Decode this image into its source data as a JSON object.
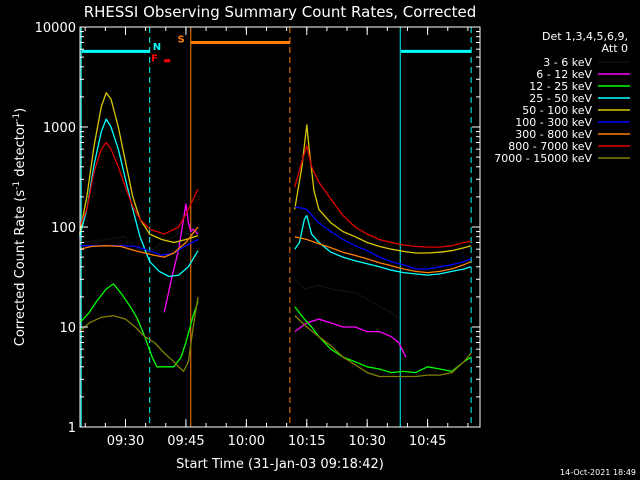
{
  "chart_data": {
    "type": "line",
    "title": "RHESSI Observing Summary Count Rates, Corrected",
    "xlabel": "Start Time (31-Jan-03 09:18:42)",
    "ylabel": "Corrected Count Rate (s⁻¹ detector⁻¹)",
    "ylabel_parts": [
      "Corrected Count Rate (s",
      "-1",
      " detector",
      "-1",
      ")"
    ],
    "yscale": "log",
    "ylim": [
      1,
      10000
    ],
    "xlim": [
      9.3117,
      10.9667
    ],
    "xticks": [
      {
        "value": 9.5,
        "label": "09:30"
      },
      {
        "value": 9.75,
        "label": "09:45"
      },
      {
        "value": 10.0,
        "label": "10:00"
      },
      {
        "value": 10.25,
        "label": "10:15"
      },
      {
        "value": 10.5,
        "label": "10:30"
      },
      {
        "value": 10.75,
        "label": "10:45"
      }
    ],
    "yticks": [
      {
        "value": 1,
        "label": "1"
      },
      {
        "value": 10,
        "label": "10"
      },
      {
        "value": 100,
        "label": "100"
      },
      {
        "value": 1000,
        "label": "1000"
      },
      {
        "value": 10000,
        "label": "10000"
      }
    ],
    "legend_header": [
      "Det 1,3,4,5,6,9,",
      "Att 0"
    ],
    "timestamp": "14-Oct-2021 18:49",
    "vlines": [
      {
        "x": 9.3167,
        "style": "solid",
        "color": "#00ffff"
      },
      {
        "x": 9.6,
        "style": "dashed",
        "color": "#00ffff"
      },
      {
        "x": 9.77,
        "style": "solid",
        "color": "#ff7f00"
      },
      {
        "x": 10.18,
        "style": "dashed",
        "color": "#ff7f00"
      },
      {
        "x": 10.6367,
        "style": "solid",
        "color": "#00ffff"
      },
      {
        "x": 10.93,
        "style": "dashed",
        "color": "#00ffff"
      }
    ],
    "flag_bars": [
      {
        "x0": 9.32,
        "x1": 9.6,
        "y": 5700,
        "color": "#00ffff"
      },
      {
        "x0": 10.64,
        "x1": 10.93,
        "y": 5700,
        "color": "#00ffff"
      },
      {
        "x0": 9.7717,
        "x1": 10.1817,
        "y": 7000,
        "color": "#ff7f00"
      },
      {
        "x0": 9.66,
        "x1": 9.685,
        "y": 4600,
        "color": "#ff0000"
      }
    ],
    "flag_labels": [
      {
        "text": "N",
        "x": 9.63,
        "y": 5900,
        "color": "#00ffff"
      },
      {
        "text": "S",
        "x": 9.73,
        "y": 7000,
        "color": "#ff7f00"
      },
      {
        "text": "F",
        "x": 9.62,
        "y": 4500,
        "color": "#ff0000"
      }
    ],
    "series": [
      {
        "name": "3 - 6 keV",
        "color": "#000000",
        "points": [
          [
            9.31,
            70
          ],
          [
            9.4,
            74
          ],
          [
            9.5,
            80
          ],
          [
            9.55,
            60
          ],
          [
            9.6,
            55
          ],
          [
            9.65,
            70
          ],
          [
            9.7,
            80
          ],
          [
            9.73,
            90
          ],
          [
            9.76,
            85
          ],
          [
            9.78,
            90
          ],
          [
            9.8,
            95
          ]
        ]
      },
      {
        "name": "6 - 12 keV",
        "color": "#ff00ff",
        "points": [
          [
            9.66,
            14
          ],
          [
            9.69,
            30
          ],
          [
            9.72,
            60
          ],
          [
            9.74,
            120
          ],
          [
            9.75,
            170
          ],
          [
            9.76,
            110
          ],
          [
            9.77,
            90
          ],
          [
            9.78,
            95
          ],
          [
            9.8,
            85
          ]
        ]
      },
      {
        "name": "12 - 25 keV",
        "color": "#00ff00",
        "points": [
          [
            9.31,
            11
          ],
          [
            9.35,
            14
          ],
          [
            9.38,
            18
          ],
          [
            9.42,
            24
          ],
          [
            9.45,
            27
          ],
          [
            9.48,
            22
          ],
          [
            9.52,
            16
          ],
          [
            9.55,
            12
          ],
          [
            9.58,
            8
          ],
          [
            9.61,
            5
          ],
          [
            9.63,
            4
          ],
          [
            9.67,
            4
          ],
          [
            9.7,
            4
          ],
          [
            9.73,
            5
          ],
          [
            9.75,
            7
          ],
          [
            9.78,
            13
          ],
          [
            9.8,
            18
          ]
        ]
      },
      {
        "name": "25 - 50 keV",
        "color": "#00ffff",
        "points": [
          [
            9.31,
            80
          ],
          [
            9.34,
            150
          ],
          [
            9.37,
            420
          ],
          [
            9.4,
            900
          ],
          [
            9.42,
            1200
          ],
          [
            9.44,
            1000
          ],
          [
            9.47,
            600
          ],
          [
            9.5,
            300
          ],
          [
            9.53,
            150
          ],
          [
            9.56,
            80
          ],
          [
            9.6,
            45
          ],
          [
            9.64,
            36
          ],
          [
            9.68,
            32
          ],
          [
            9.72,
            33
          ],
          [
            9.76,
            40
          ],
          [
            9.8,
            58
          ]
        ]
      },
      {
        "name": "50 - 100 keV",
        "color": "#d8c800",
        "points": [
          [
            9.31,
            85
          ],
          [
            9.34,
            200
          ],
          [
            9.37,
            650
          ],
          [
            9.4,
            1600
          ],
          [
            9.42,
            2200
          ],
          [
            9.44,
            1900
          ],
          [
            9.47,
            1000
          ],
          [
            9.5,
            450
          ],
          [
            9.53,
            200
          ],
          [
            9.56,
            120
          ],
          [
            9.6,
            85
          ],
          [
            9.65,
            75
          ],
          [
            9.7,
            70
          ],
          [
            9.75,
            75
          ],
          [
            9.8,
            82
          ]
        ]
      },
      {
        "name": "100 - 300 keV",
        "color": "#0000ff",
        "points": [
          [
            9.31,
            65
          ],
          [
            9.38,
            65
          ],
          [
            9.48,
            65
          ],
          [
            9.54,
            64
          ],
          [
            9.6,
            58
          ],
          [
            9.65,
            52
          ],
          [
            9.7,
            55
          ],
          [
            9.75,
            65
          ],
          [
            9.8,
            75
          ]
        ]
      },
      {
        "name": "300 - 800 keV",
        "color": "#ff7f00",
        "points": [
          [
            9.31,
            60
          ],
          [
            9.36,
            64
          ],
          [
            9.42,
            65
          ],
          [
            9.48,
            64
          ],
          [
            9.54,
            58
          ],
          [
            9.58,
            55
          ],
          [
            9.62,
            52
          ],
          [
            9.66,
            50
          ],
          [
            9.7,
            55
          ],
          [
            9.75,
            70
          ],
          [
            9.8,
            100
          ]
        ]
      },
      {
        "name": "800 - 7000 keV",
        "color": "#e00000",
        "points": [
          [
            9.31,
            100
          ],
          [
            9.34,
            150
          ],
          [
            9.37,
            360
          ],
          [
            9.4,
            600
          ],
          [
            9.42,
            700
          ],
          [
            9.44,
            600
          ],
          [
            9.47,
            400
          ],
          [
            9.5,
            250
          ],
          [
            9.53,
            160
          ],
          [
            9.56,
            120
          ],
          [
            9.6,
            95
          ],
          [
            9.66,
            85
          ],
          [
            9.72,
            100
          ],
          [
            9.76,
            150
          ],
          [
            9.8,
            240
          ]
        ]
      },
      {
        "name": "7000 - 15000 keV",
        "color": "#808000",
        "points": [
          [
            9.31,
            9
          ],
          [
            9.35,
            11
          ],
          [
            9.4,
            12.5
          ],
          [
            9.45,
            13
          ],
          [
            9.5,
            12
          ],
          [
            9.54,
            10
          ],
          [
            9.58,
            8
          ],
          [
            9.62,
            7
          ],
          [
            9.66,
            5.5
          ],
          [
            9.7,
            4.5
          ],
          [
            9.72,
            4
          ],
          [
            9.74,
            3.6
          ],
          [
            9.76,
            4.5
          ],
          [
            9.78,
            10
          ],
          [
            9.8,
            20
          ]
        ]
      }
    ],
    "series_after_gap": [
      {
        "name": "3 - 6 keV",
        "color": "#000000",
        "points": [
          [
            10.2,
            30
          ],
          [
            10.24,
            24
          ],
          [
            10.3,
            26
          ],
          [
            10.35,
            24
          ],
          [
            10.4,
            23
          ],
          [
            10.45,
            22
          ],
          [
            10.5,
            19
          ],
          [
            10.55,
            16
          ],
          [
            10.6,
            14
          ],
          [
            10.63,
            12
          ]
        ]
      },
      {
        "name": "6 - 12 keV",
        "color": "#ff00ff",
        "points": [
          [
            10.2,
            9
          ],
          [
            10.25,
            11
          ],
          [
            10.3,
            12
          ],
          [
            10.35,
            11
          ],
          [
            10.4,
            10
          ],
          [
            10.45,
            10
          ],
          [
            10.5,
            9
          ],
          [
            10.55,
            9
          ],
          [
            10.6,
            8
          ],
          [
            10.63,
            7
          ],
          [
            10.66,
            5
          ]
        ]
      },
      {
        "name": "12 - 25 keV",
        "color": "#00ff00",
        "points": [
          [
            10.2,
            16
          ],
          [
            10.24,
            12
          ],
          [
            10.27,
            10
          ],
          [
            10.3,
            8
          ],
          [
            10.35,
            6
          ],
          [
            10.4,
            5
          ],
          [
            10.45,
            4.5
          ],
          [
            10.5,
            4
          ],
          [
            10.55,
            3.8
          ],
          [
            10.6,
            3.5
          ],
          [
            10.65,
            3.6
          ],
          [
            10.7,
            3.5
          ],
          [
            10.75,
            4
          ],
          [
            10.8,
            3.8
          ],
          [
            10.85,
            3.6
          ],
          [
            10.9,
            4.5
          ],
          [
            10.93,
            5
          ]
        ]
      },
      {
        "name": "25 - 50 keV",
        "color": "#00ffff",
        "points": [
          [
            10.2,
            60
          ],
          [
            10.22,
            70
          ],
          [
            10.24,
            120
          ],
          [
            10.25,
            130
          ],
          [
            10.27,
            85
          ],
          [
            10.3,
            70
          ],
          [
            10.35,
            56
          ],
          [
            10.4,
            50
          ],
          [
            10.45,
            46
          ],
          [
            10.5,
            43
          ],
          [
            10.55,
            40
          ],
          [
            10.6,
            37
          ],
          [
            10.65,
            35
          ],
          [
            10.7,
            34
          ],
          [
            10.75,
            33
          ],
          [
            10.8,
            34
          ],
          [
            10.85,
            36
          ],
          [
            10.9,
            38
          ],
          [
            10.93,
            40
          ]
        ]
      },
      {
        "name": "50 - 100 keV",
        "color": "#d8c800",
        "points": [
          [
            10.2,
            150
          ],
          [
            10.23,
            400
          ],
          [
            10.25,
            1050
          ],
          [
            10.26,
            600
          ],
          [
            10.28,
            230
          ],
          [
            10.3,
            150
          ],
          [
            10.35,
            110
          ],
          [
            10.4,
            90
          ],
          [
            10.45,
            80
          ],
          [
            10.5,
            70
          ],
          [
            10.55,
            64
          ],
          [
            10.6,
            60
          ],
          [
            10.65,
            57
          ],
          [
            10.7,
            55
          ],
          [
            10.75,
            55
          ],
          [
            10.8,
            56
          ],
          [
            10.85,
            58
          ],
          [
            10.9,
            62
          ],
          [
            10.93,
            65
          ]
        ]
      },
      {
        "name": "100 - 300 keV",
        "color": "#0000ff",
        "points": [
          [
            10.2,
            160
          ],
          [
            10.25,
            150
          ],
          [
            10.3,
            110
          ],
          [
            10.35,
            90
          ],
          [
            10.4,
            75
          ],
          [
            10.45,
            65
          ],
          [
            10.5,
            58
          ],
          [
            10.55,
            50
          ],
          [
            10.6,
            45
          ],
          [
            10.65,
            42
          ],
          [
            10.7,
            38
          ],
          [
            10.75,
            38
          ],
          [
            10.8,
            40
          ],
          [
            10.85,
            42
          ],
          [
            10.9,
            45
          ],
          [
            10.93,
            48
          ]
        ]
      },
      {
        "name": "300 - 800 keV",
        "color": "#ff7f00",
        "points": [
          [
            10.2,
            80
          ],
          [
            10.25,
            75
          ],
          [
            10.3,
            68
          ],
          [
            10.35,
            62
          ],
          [
            10.4,
            56
          ],
          [
            10.45,
            52
          ],
          [
            10.5,
            48
          ],
          [
            10.55,
            44
          ],
          [
            10.6,
            41
          ],
          [
            10.65,
            38
          ],
          [
            10.7,
            36
          ],
          [
            10.75,
            35
          ],
          [
            10.8,
            36
          ],
          [
            10.85,
            38
          ],
          [
            10.9,
            42
          ],
          [
            10.93,
            45
          ]
        ]
      },
      {
        "name": "800 - 7000 keV",
        "color": "#e00000",
        "points": [
          [
            10.2,
            250
          ],
          [
            10.23,
            450
          ],
          [
            10.25,
            650
          ],
          [
            10.27,
            400
          ],
          [
            10.3,
            280
          ],
          [
            10.35,
            190
          ],
          [
            10.4,
            130
          ],
          [
            10.45,
            100
          ],
          [
            10.5,
            85
          ],
          [
            10.55,
            75
          ],
          [
            10.6,
            70
          ],
          [
            10.65,
            66
          ],
          [
            10.7,
            64
          ],
          [
            10.75,
            63
          ],
          [
            10.8,
            63
          ],
          [
            10.85,
            65
          ],
          [
            10.9,
            70
          ],
          [
            10.93,
            72
          ]
        ]
      },
      {
        "name": "7000 - 15000 keV",
        "color": "#808000",
        "points": [
          [
            10.2,
            13
          ],
          [
            10.25,
            10
          ],
          [
            10.3,
            8
          ],
          [
            10.35,
            6.5
          ],
          [
            10.4,
            5
          ],
          [
            10.45,
            4.2
          ],
          [
            10.5,
            3.5
          ],
          [
            10.55,
            3.2
          ],
          [
            10.6,
            3.2
          ],
          [
            10.65,
            3.2
          ],
          [
            10.7,
            3.2
          ],
          [
            10.75,
            3.3
          ],
          [
            10.8,
            3.3
          ],
          [
            10.85,
            3.5
          ],
          [
            10.9,
            4.5
          ],
          [
            10.93,
            5.5
          ]
        ]
      }
    ]
  }
}
